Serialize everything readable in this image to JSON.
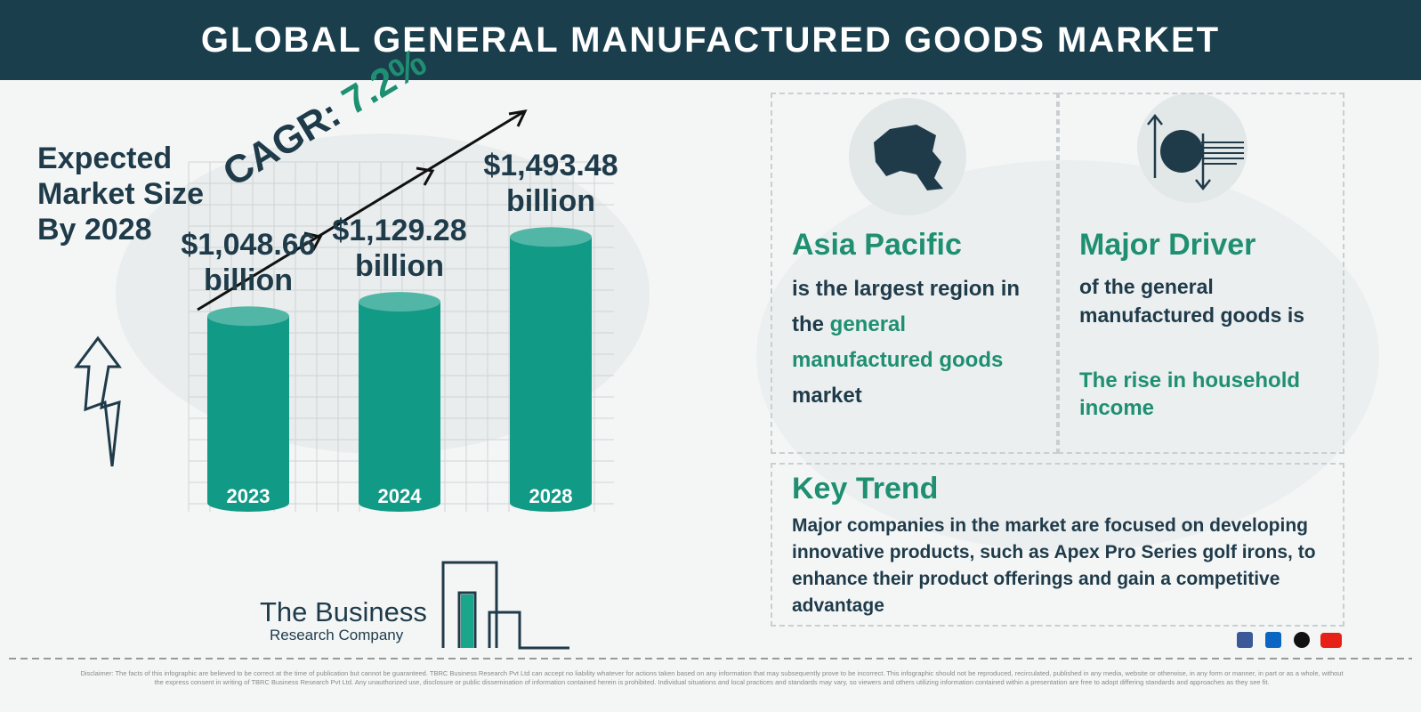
{
  "header": {
    "title": "GLOBAL GENERAL MANUFACTURED GOODS MARKET"
  },
  "chart_data": {
    "type": "bar",
    "title": "Expected Market Size By 2028",
    "categories": [
      "2023",
      "2024",
      "2028"
    ],
    "values": [
      1048.66,
      1129.28,
      1493.48
    ],
    "value_labels": [
      "$1,048.66 billion",
      "$1,129.28 billion",
      "$1,493.48 billion"
    ],
    "color": "#119a86",
    "cagr_label": "CAGR:",
    "cagr": "7.2%"
  },
  "region": {
    "title": "Asia Pacific",
    "text": [
      "is the largest region in the",
      "general manufactured goods",
      "market"
    ]
  },
  "driver": {
    "title": "Major Driver",
    "text": "of the general manufactured goods is",
    "highlight": "The rise in household income"
  },
  "trend": {
    "title": "Key Trend",
    "text": "Major companies in the market are focused on developing innovative products, such as Apex Pro Series golf irons, to enhance their product offerings and gain a competitive advantage"
  },
  "logo": {
    "line1": "The Business",
    "line2": "Research Company"
  },
  "disclaimer": "Disclaimer: The facts of this infographic are believed to be correct at the time of publication but cannot be guaranteed. TBRC Business Research Pvt Ltd can accept no liability whatever for actions taken based on any information that may subsequently prove to be incorrect. This infographic should not be reproduced, recirculated, published in any media, website or otherwise, in any form or manner, in part or as a whole, without the express consent in writing of TBRC Business Research Pvt Ltd. Any unauthorized use, disclosure or public dissemination of information contained herein is prohibited. Individual situations and local practices and standards may vary, so viewers and others utilizing information contained within a presentation are free to adopt differing standards and approaches as they see fit."
}
